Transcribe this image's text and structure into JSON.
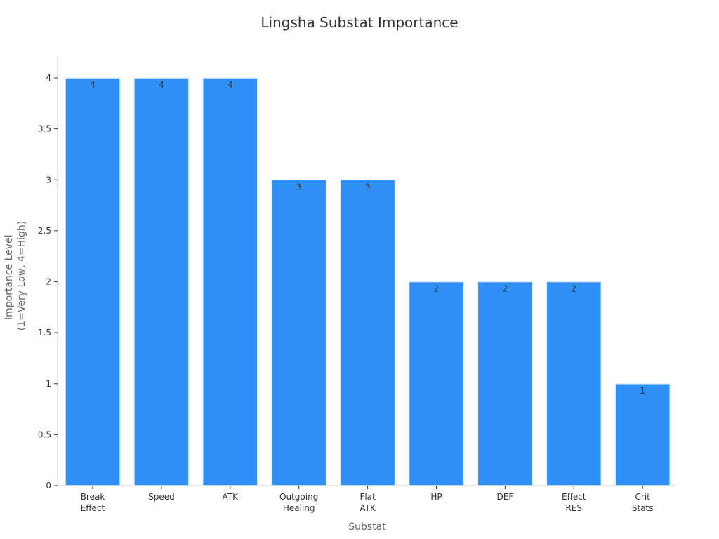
{
  "chart_data": {
    "type": "bar",
    "title": "Lingsha Substat Importance",
    "xlabel": "Substat",
    "ylabel": [
      "Importance Level",
      "(1=Very Low, 4=High)"
    ],
    "categories": [
      [
        "Break",
        "Effect"
      ],
      [
        "Speed"
      ],
      [
        "ATK"
      ],
      [
        "Outgoing",
        "Healing"
      ],
      [
        "Flat",
        "ATK"
      ],
      [
        "HP"
      ],
      [
        "DEF"
      ],
      [
        "Effect",
        "RES"
      ],
      [
        "Crit",
        "Stats"
      ]
    ],
    "values": [
      4,
      4,
      4,
      3,
      3,
      2,
      2,
      2,
      1
    ],
    "ylim": [
      0,
      4
    ],
    "yticks": [
      "0",
      "0.5",
      "1",
      "1.5",
      "2",
      "2.5",
      "3",
      "3.5",
      "4"
    ],
    "grid": false,
    "legend": "none",
    "bar_color": "#2f91f7"
  }
}
